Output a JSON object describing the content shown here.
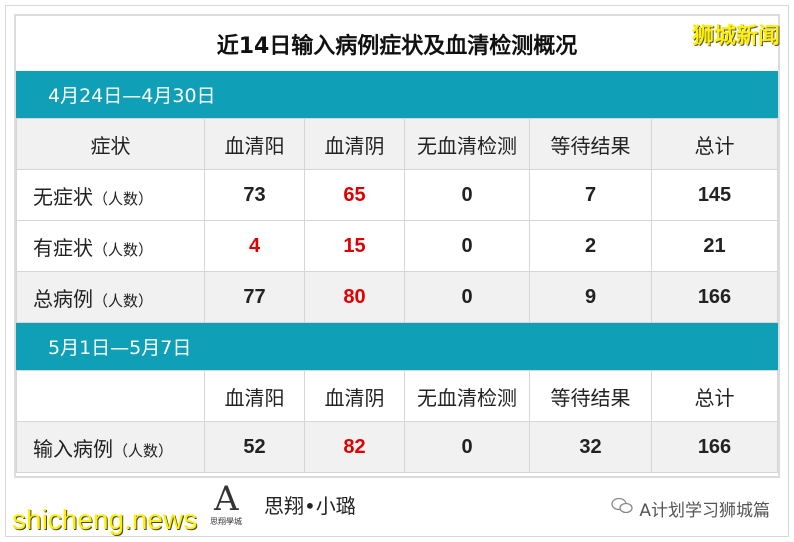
{
  "title": "近14日输入病例症状及血清检测概况",
  "watermark_top": "狮城新闻",
  "watermark_bottom": "shicheng.news",
  "section1": {
    "period": "4月24日—4月30日",
    "headers": [
      "症状",
      "血清阳",
      "血清阴",
      "无血清检测",
      "等待结果",
      "总计"
    ],
    "rows": [
      {
        "label": "无症状",
        "unit": "（人数）",
        "values": [
          "73",
          "65",
          "0",
          "7",
          "145"
        ]
      },
      {
        "label": "有症状",
        "unit": "（人数）",
        "values": [
          "4",
          "15",
          "0",
          "2",
          "21"
        ]
      },
      {
        "label": "总病例",
        "unit": "（人数）",
        "values": [
          "77",
          "80",
          "0",
          "9",
          "166"
        ]
      }
    ]
  },
  "section2": {
    "period": "5月1日—5月7日",
    "headers": [
      "",
      "血清阳",
      "血清阴",
      "无血清检测",
      "等待结果",
      "总计"
    ],
    "rows": [
      {
        "label": "输入病例",
        "unit": "（人数）",
        "values": [
          "52",
          "82",
          "0",
          "32",
          "166"
        ]
      }
    ]
  },
  "footer": {
    "logo_text": "A",
    "logo_sub": "思翔學城",
    "signature": "思翔•小璐",
    "account": "A计划学习狮城篇",
    "icon": "wechat-icon"
  },
  "colors": {
    "band": "#0fa0b8",
    "highlight_red": "#e00000",
    "watermark": "#ffef00"
  }
}
